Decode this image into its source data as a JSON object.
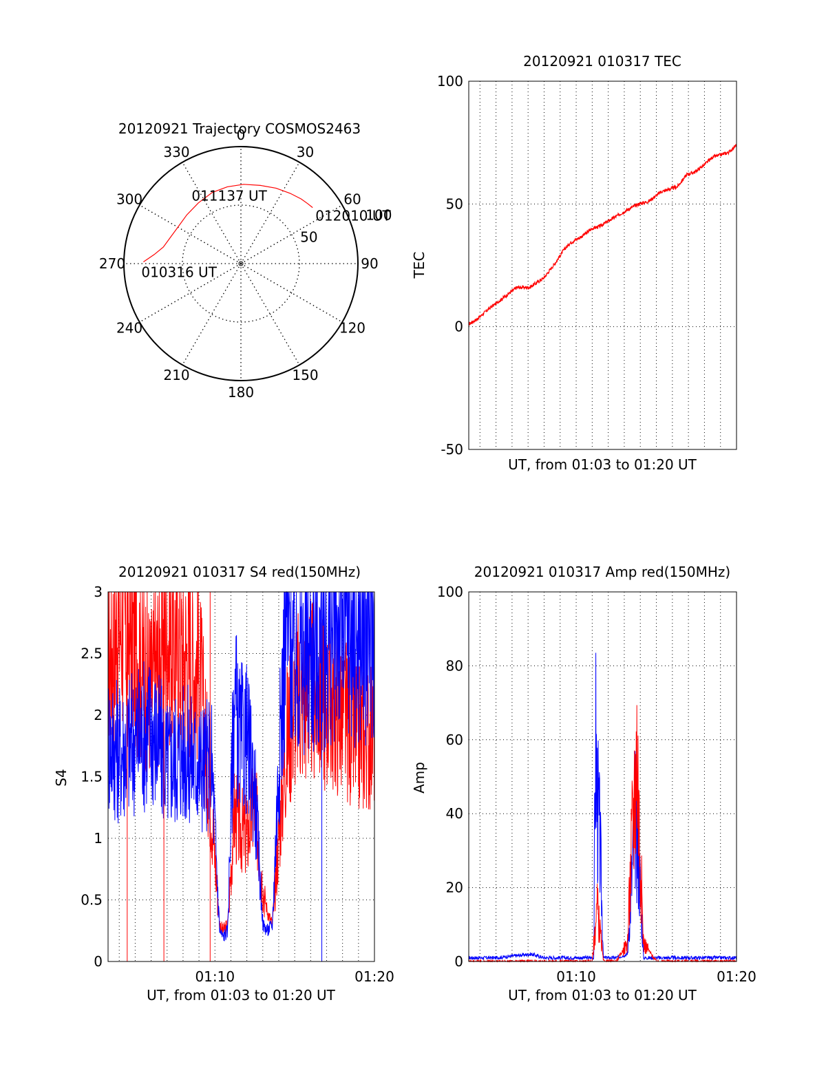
{
  "chart_data": [
    {
      "type": "polar",
      "title": "20120921 Trajectory COSMOS2463",
      "azimuth_ticks": [
        "0",
        "30",
        "60",
        "90",
        "120",
        "150",
        "180",
        "210",
        "240",
        "270",
        "300",
        "330"
      ],
      "radial_ticks": [
        "50",
        "100"
      ],
      "track": {
        "azimuth_deg": [
          271,
          276,
          282,
          290,
          300,
          312,
          325,
          338,
          350,
          2,
          14,
          25,
          35,
          43,
          48,
          52
        ],
        "zenith_deg": [
          75,
          67,
          61,
          58,
          56,
          56,
          57,
          59,
          60,
          61,
          62,
          64,
          66,
          68,
          69,
          70
        ]
      },
      "annotations": [
        {
          "text": "010316 UT",
          "azimuth_deg": 271,
          "zenith_deg": 75
        },
        {
          "text": "011137 UT",
          "azimuth_deg": 350,
          "zenith_deg": 60
        },
        {
          "text": "012010 UT",
          "azimuth_deg": 52,
          "zenith_deg": 70
        }
      ],
      "line_color": "#ff0000"
    },
    {
      "type": "line",
      "title": "20120921 010317 TEC",
      "xlabel": "UT, from 01:03 to 01:20 UT",
      "ylabel": "TEC",
      "ylim": [
        -50,
        100
      ],
      "yticks": [
        -50,
        0,
        50,
        100
      ],
      "xlim_minutes": [
        3.3,
        20
      ],
      "x_tick_labels": [],
      "series": [
        {
          "color": "#ff0000",
          "x": [
            3.3,
            3.8,
            4.5,
            5.5,
            6.3,
            7.1,
            8.0,
            8.7,
            9.2,
            9.6,
            10.4,
            11.0,
            11.5,
            12.0,
            12.5,
            13.3,
            13.9,
            14.5,
            15.3,
            15.8,
            16.3,
            16.9,
            17.4,
            18.0,
            18.5,
            19.0,
            19.5,
            20.0
          ],
          "y": [
            1,
            3,
            7,
            12,
            16,
            16,
            20,
            26,
            31,
            34,
            37,
            40,
            41,
            43,
            45,
            48,
            50,
            51,
            55,
            56,
            57,
            62,
            63,
            66,
            69,
            70,
            71,
            74
          ]
        }
      ]
    },
    {
      "type": "line",
      "title": "20120921 010317 S4 red(150MHz)",
      "xlabel": "UT, from 01:03 to 01:20 UT",
      "ylabel": "S4",
      "ylim": [
        0,
        3
      ],
      "yticks": [
        "0",
        "0.5",
        "1",
        "1.5",
        "2",
        "2.5",
        "3"
      ],
      "xlim_minutes": [
        3.3,
        20
      ],
      "x_ticks": [
        {
          "minute": 10,
          "label": "01:10"
        },
        {
          "minute": 20,
          "label": "01:20"
        }
      ],
      "series": [
        {
          "color": "#ff0000",
          "x": [
            3.3,
            4,
            5,
            6,
            7,
            8,
            9,
            9.8,
            10.3,
            10.5,
            10.8,
            11.2,
            11.5,
            12,
            12.5,
            13,
            13.3,
            13.6,
            14,
            14.5,
            15,
            16,
            17,
            18,
            19,
            20
          ],
          "y": [
            2.4,
            2.8,
            2.6,
            2.2,
            2.7,
            2.5,
            2.4,
            1.2,
            0.3,
            0.25,
            0.3,
            1.2,
            1.1,
            1.0,
            1.3,
            0.6,
            0.4,
            0.3,
            1.0,
            1.8,
            2.1,
            2.2,
            2.1,
            2.0,
            1.8,
            1.9
          ]
        },
        {
          "color": "#0000ff",
          "x": [
            3.3,
            4,
            5,
            6,
            7,
            8,
            9,
            9.8,
            10.3,
            10.5,
            10.8,
            11.2,
            11.5,
            12,
            12.5,
            13,
            13.3,
            13.6,
            14,
            14.5,
            15,
            16,
            17,
            18,
            19,
            20
          ],
          "y": [
            1.8,
            1.7,
            1.8,
            1.9,
            1.6,
            1.7,
            1.6,
            1.6,
            0.25,
            0.2,
            0.25,
            2.2,
            1.8,
            1.8,
            1.4,
            0.3,
            0.25,
            0.3,
            1.6,
            2.8,
            2.4,
            2.5,
            2.6,
            2.8,
            2.6,
            2.7
          ]
        }
      ],
      "dropouts": [
        {
          "minute": 4.5,
          "color": "#ff0000"
        },
        {
          "minute": 6.8,
          "color": "#ff0000"
        },
        {
          "minute": 9.7,
          "color": "#ff0000"
        },
        {
          "minute": 16.7,
          "color": "#0000ff"
        }
      ]
    },
    {
      "type": "line",
      "title": "20120921 010317 Amp red(150MHz)",
      "xlabel": "UT, from 01:03 to 01:20 UT",
      "ylabel": "Amp",
      "ylim": [
        0,
        100
      ],
      "yticks": [
        0,
        20,
        40,
        60,
        80,
        100
      ],
      "xlim_minutes": [
        3.3,
        20
      ],
      "x_ticks": [
        {
          "minute": 10,
          "label": "01:10"
        },
        {
          "minute": 20,
          "label": "01:20"
        }
      ],
      "series": [
        {
          "color": "#0000ff",
          "x": [
            3.3,
            5,
            7.2,
            8,
            10,
            11.1,
            11.2,
            11.3,
            11.5,
            11.7,
            12.5,
            13.2,
            13.5,
            13.7,
            14,
            14.2,
            15,
            17,
            20
          ],
          "y": [
            1,
            1,
            2,
            1,
            1,
            1,
            62,
            45,
            30,
            1,
            1,
            2,
            25,
            40,
            20,
            1,
            1,
            1,
            1
          ]
        },
        {
          "color": "#ff0000",
          "x": [
            3.3,
            11.0,
            11.2,
            11.3,
            11.5,
            11.7,
            12.5,
            13.2,
            13.5,
            13.8,
            13.9,
            14.2,
            15,
            20
          ],
          "y": [
            0,
            0,
            10,
            15,
            8,
            0,
            0,
            5,
            35,
            58,
            40,
            5,
            0,
            0
          ]
        }
      ]
    }
  ]
}
